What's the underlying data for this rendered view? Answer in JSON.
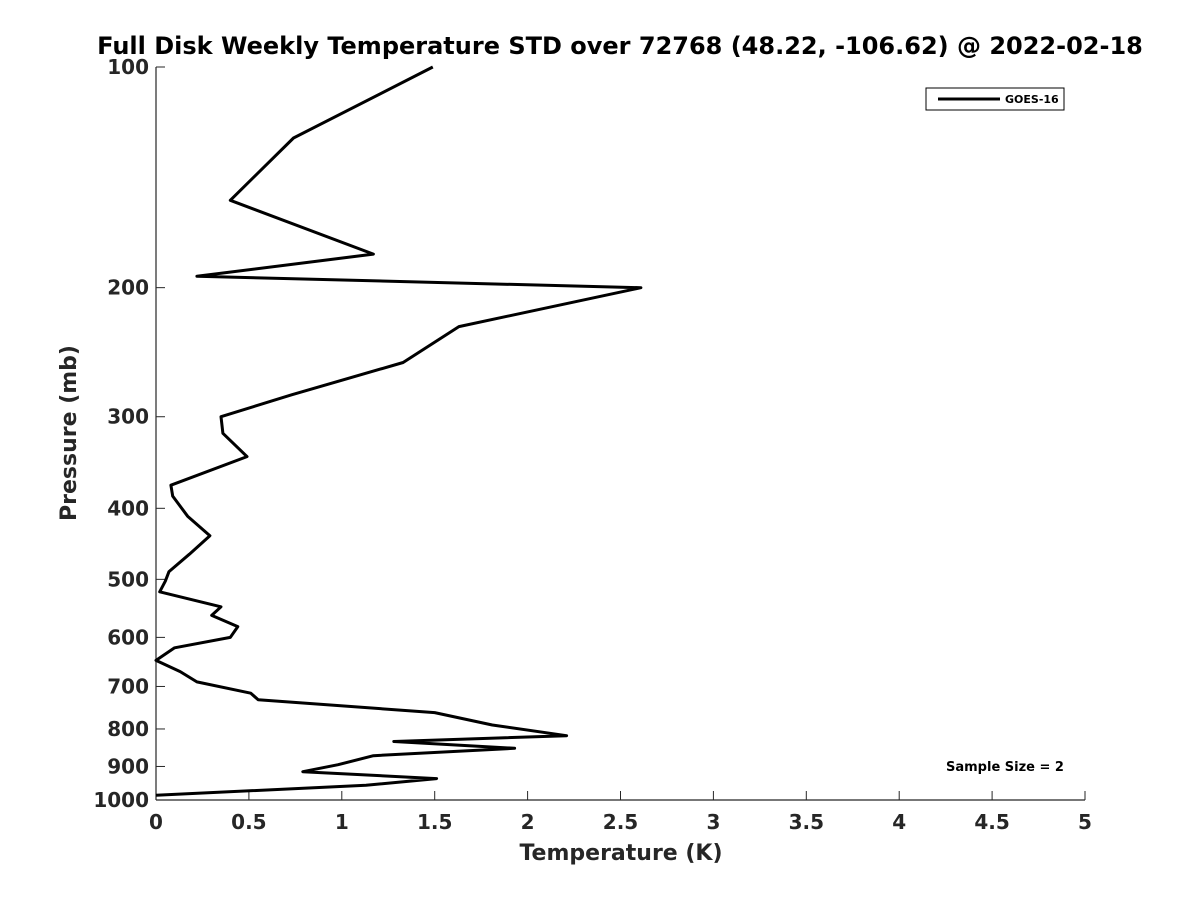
{
  "chart_data": {
    "type": "line",
    "title": "Full Disk Weekly Temperature STD over 72768 (48.22, -106.62) @ 2022-02-18",
    "xlabel": "Temperature (K)",
    "ylabel": "Pressure (mb)",
    "xlim": [
      0,
      5
    ],
    "ylim": [
      100,
      1000
    ],
    "y_scale": "log",
    "y_reversed": true,
    "x_ticks": [
      "0",
      "0.5",
      "1",
      "1.5",
      "2",
      "2.5",
      "3",
      "3.5",
      "4",
      "4.5",
      "5"
    ],
    "y_ticks": [
      "100",
      "200",
      "300",
      "400",
      "500",
      "600",
      "700",
      "800",
      "900",
      "1000"
    ],
    "grid": false,
    "legend_position": "top-right",
    "series": [
      {
        "name": "GOES-16",
        "color": "#000000",
        "points": [
          [
            1.49,
            100
          ],
          [
            0.74,
            125
          ],
          [
            0.4,
            152
          ],
          [
            1.17,
            180
          ],
          [
            0.22,
            193
          ],
          [
            2.61,
            200
          ],
          [
            1.63,
            226
          ],
          [
            1.33,
            253
          ],
          [
            0.73,
            280
          ],
          [
            0.35,
            300
          ],
          [
            0.36,
            316
          ],
          [
            0.49,
            340
          ],
          [
            0.08,
            372
          ],
          [
            0.09,
            385
          ],
          [
            0.17,
            410
          ],
          [
            0.29,
            436
          ],
          [
            0.18,
            462
          ],
          [
            0.07,
            488
          ],
          [
            0.05,
            503
          ],
          [
            0.02,
            520
          ],
          [
            0.35,
            545
          ],
          [
            0.3,
            560
          ],
          [
            0.44,
            580
          ],
          [
            0.4,
            600
          ],
          [
            0.1,
            620
          ],
          [
            0.0,
            645
          ],
          [
            0.13,
            668
          ],
          [
            0.22,
            690
          ],
          [
            0.51,
            715
          ],
          [
            0.55,
            730
          ],
          [
            1.5,
            760
          ],
          [
            1.81,
            790
          ],
          [
            2.21,
            817
          ],
          [
            1.28,
            832
          ],
          [
            1.93,
            850
          ],
          [
            1.17,
            870
          ],
          [
            0.98,
            895
          ],
          [
            0.79,
            915
          ],
          [
            1.51,
            935
          ],
          [
            1.13,
            955
          ],
          [
            0.0,
            985
          ]
        ]
      }
    ],
    "annotations": [
      "Sample Size = 2"
    ]
  }
}
